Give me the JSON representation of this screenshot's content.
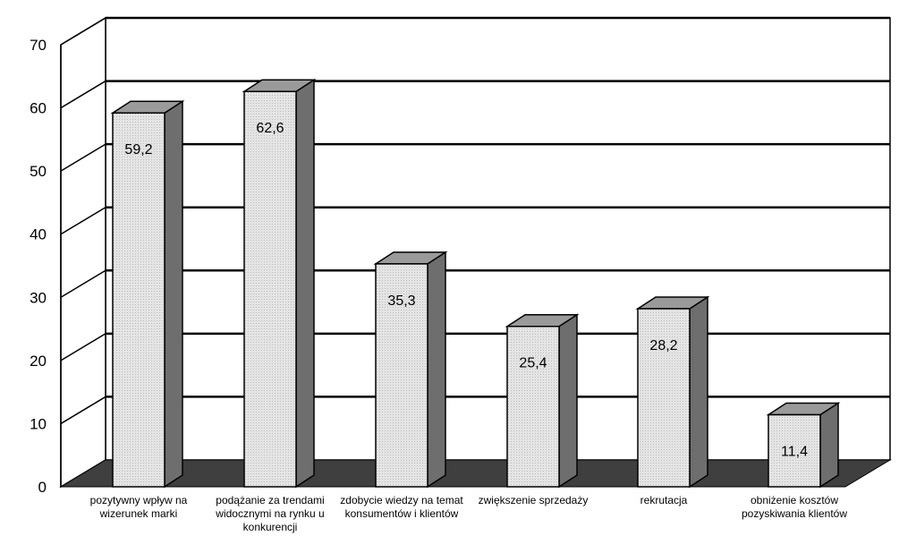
{
  "chart_data": {
    "type": "bar",
    "categories": [
      "pozytywny wpływ na wizerunek marki",
      "podążanie za trendami widocznymi na rynku u konkurencji",
      "zdobycie wiedzy na temat konsumentów i klientów",
      "zwiększenie sprzedaży",
      "rekrutacja",
      "obniżenie kosztów pozyskiwania klientów"
    ],
    "values": [
      59.2,
      62.6,
      35.3,
      25.4,
      28.2,
      11.4
    ],
    "value_labels": [
      "59,2",
      "62,6",
      "35,3",
      "25,4",
      "28,2",
      "11,4"
    ],
    "ylim": [
      0,
      70
    ],
    "yticks": [
      "0",
      "10",
      "20",
      "30",
      "40",
      "50",
      "60",
      "70"
    ],
    "title": "",
    "xlabel": "",
    "ylabel": "",
    "grid": true,
    "legend": "none",
    "style": "3d",
    "colors": {
      "bar_face": "#e2e2e2",
      "bar_top": "#9a9a9a",
      "bar_side": "#6e6e6e",
      "floor": "#3f3f3f",
      "grid": "#000000"
    }
  }
}
